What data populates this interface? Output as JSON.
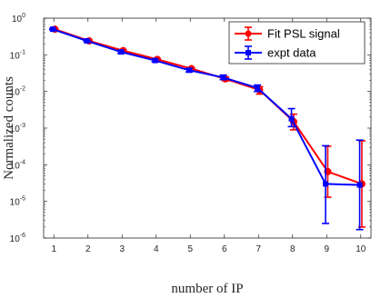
{
  "chart_data": {
    "type": "line",
    "xlabel": "number of IP",
    "ylabel": "Normalized counts",
    "x": [
      1,
      2,
      3,
      4,
      5,
      6,
      7,
      8,
      9,
      10
    ],
    "xlim": [
      0.7,
      10.3
    ],
    "ylim": [
      1e-06,
      1
    ],
    "yscale": "log",
    "x_tick_labels": [
      "1",
      "2",
      "3",
      "4",
      "5",
      "6",
      "7",
      "8",
      "9",
      "10"
    ],
    "y_ticks": [
      {
        "value": 1e-06,
        "base": "10",
        "exp": "-6"
      },
      {
        "value": 1e-05,
        "base": "10",
        "exp": "-5"
      },
      {
        "value": 0.0001,
        "base": "10",
        "exp": "-4"
      },
      {
        "value": 0.001,
        "base": "10",
        "exp": "-3"
      },
      {
        "value": 0.01,
        "base": "10",
        "exp": "-2"
      },
      {
        "value": 0.1,
        "base": "10",
        "exp": "-1"
      },
      {
        "value": 1,
        "base": "10",
        "exp": "0"
      }
    ],
    "grid": false,
    "legend_position": "top-right",
    "series": [
      {
        "name": "Fit PSL signal",
        "color": "#ff0000",
        "marker": "circle",
        "values": [
          0.5,
          0.24,
          0.13,
          0.075,
          0.042,
          0.022,
          0.011,
          0.0015,
          6.5e-05,
          3e-05
        ],
        "err_low": [
          0.48,
          0.23,
          0.123,
          0.071,
          0.039,
          0.0195,
          0.0085,
          0.0009,
          1.3e-05,
          2e-06
        ],
        "err_high": [
          0.52,
          0.25,
          0.137,
          0.079,
          0.045,
          0.0245,
          0.0135,
          0.0024,
          0.00032,
          0.00045
        ]
      },
      {
        "name": "expt data",
        "color": "#0000ff",
        "marker": "square",
        "values": [
          0.5,
          0.24,
          0.12,
          0.07,
          0.038,
          0.024,
          0.0125,
          0.0018,
          3e-05,
          2.8e-05
        ],
        "err_low": [
          0.48,
          0.23,
          0.11,
          0.065,
          0.034,
          0.021,
          0.01,
          0.0011,
          2.5e-06,
          1.7e-06
        ],
        "err_high": [
          0.52,
          0.25,
          0.13,
          0.075,
          0.042,
          0.028,
          0.015,
          0.0034,
          0.00033,
          0.00047
        ]
      }
    ]
  }
}
